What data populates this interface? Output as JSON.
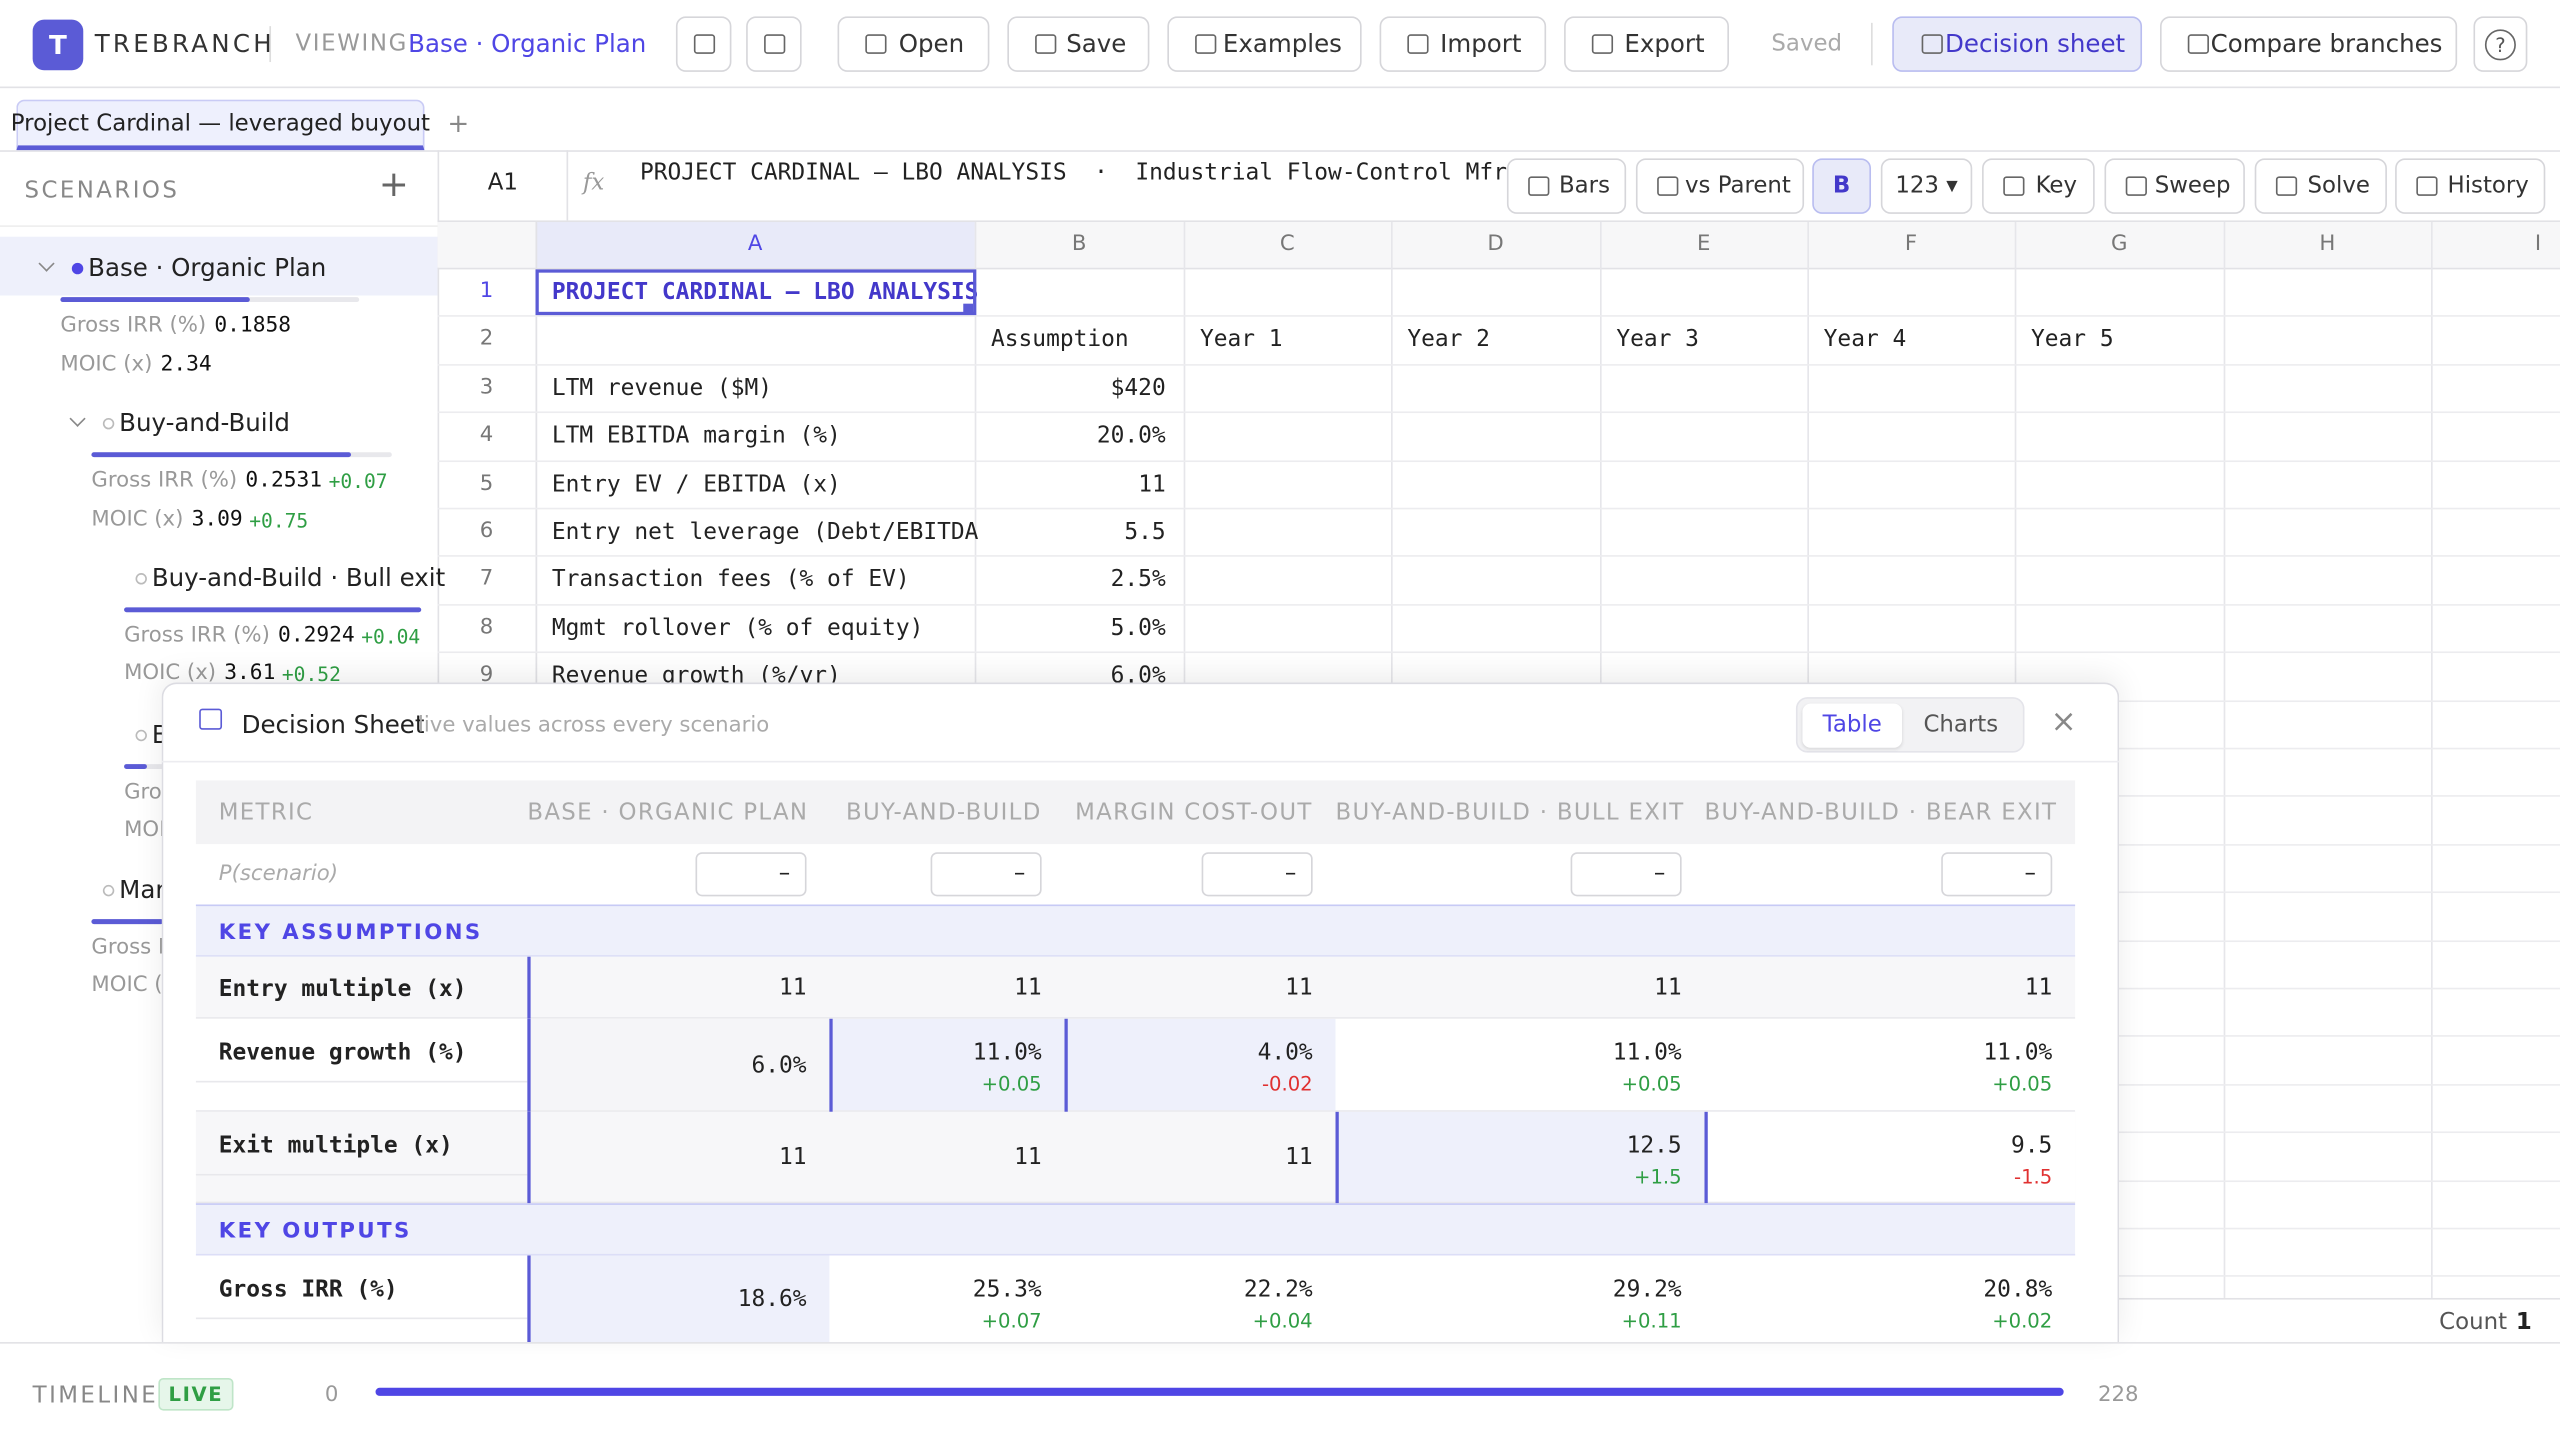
{
  "header": {
    "logo": "T",
    "brand": "TREBRANCH",
    "viewing_label": "VIEWING",
    "viewing_value": "Base · Organic Plan",
    "buttons": [
      "Open",
      "Save",
      "Examples",
      "Import",
      "Export"
    ],
    "status": "Saved",
    "decision_sheet": "Decision sheet",
    "compare": "Compare branches",
    "help": "?"
  },
  "tabs": {
    "items": [
      "Project Cardinal — leveraged buyout"
    ],
    "add": "+"
  },
  "sidebar": {
    "title": "SCENARIOS",
    "add": "+",
    "scenarios": [
      {
        "name": "Base · Organic Plan",
        "metrics": [
          {
            "label": "Gross IRR (%)",
            "value": "0.1858"
          },
          {
            "label": "MOIC (x)",
            "value": "2.34"
          }
        ]
      },
      {
        "name": "Buy-and-Build",
        "metrics": [
          {
            "label": "Gross IRR (%)",
            "value": "0.2531",
            "delta": "+0.07"
          },
          {
            "label": "MOIC (x)",
            "value": "3.09",
            "delta": "+0.75"
          }
        ]
      },
      {
        "name": "Buy-and-Build · Bull exit",
        "metrics": [
          {
            "label": "Gross IRR (%)",
            "value": "0.2924",
            "delta": "+0.04"
          },
          {
            "label": "MOIC (x)",
            "value": "3.61",
            "delta": "+0.52"
          }
        ]
      },
      {
        "name": "Buy-and-Build · Bear exit",
        "metrics": [
          {
            "label": "Gross IRR (%)"
          },
          {
            "label": "MOIC (x)"
          }
        ]
      },
      {
        "name": "Margin cost-out",
        "metrics": [
          {
            "label": "Gross IRR (%)"
          },
          {
            "label": "MOIC (x)"
          }
        ]
      }
    ]
  },
  "formula": {
    "cell": "A1",
    "fx": "fx",
    "text": "PROJECT CARDINAL — LBO ANALYSIS  ·  Industrial Flow-Control Mfr.",
    "tools": [
      "Bars",
      "vs Parent",
      "B",
      "123 ▾",
      "Key",
      "Sweep",
      "Solve",
      "History"
    ]
  },
  "grid": {
    "columns": [
      "A",
      "B",
      "C",
      "D",
      "E",
      "F",
      "G",
      "H",
      "I"
    ],
    "rows": [
      {
        "num": 1,
        "A": "PROJECT CARDINAL — LBO ANALYSIS"
      },
      {
        "num": 2,
        "B": "Assumption",
        "C": "Year 1",
        "D": "Year 2",
        "E": "Year 3",
        "F": "Year 4",
        "G": "Year 5"
      },
      {
        "num": 3,
        "A": "LTM revenue ($M)",
        "B": "$420"
      },
      {
        "num": 4,
        "A": "LTM EBITDA margin (%)",
        "B": "20.0%"
      },
      {
        "num": 5,
        "A": "Entry EV / EBITDA (x)",
        "B": "11"
      },
      {
        "num": 6,
        "A": "Entry net leverage (Debt/EBITDA",
        "B": "5.5"
      },
      {
        "num": 7,
        "A": "Transaction fees (% of EV)",
        "B": "2.5%"
      },
      {
        "num": 8,
        "A": "Mgmt rollover (% of equity)",
        "B": "5.0%"
      },
      {
        "num": 9,
        "A": "Revenue growth (%/yr)",
        "B": "6.0%"
      }
    ]
  },
  "panel": {
    "title": "Decision Sheet",
    "subtitle": "live values across every scenario",
    "views": [
      "Table",
      "Charts"
    ],
    "close": "×",
    "columns": [
      "METRIC",
      "BASE · ORGANIC PLAN",
      "BUY-AND-BUILD",
      "MARGIN COST-OUT",
      "BUY-AND-BUILD · BULL EXIT",
      "BUY-AND-BUILD · BEAR EXIT"
    ],
    "probability": {
      "label": "P(scenario)",
      "inputs": [
        "–",
        "–",
        "–",
        "–",
        "–"
      ]
    },
    "sections": [
      {
        "title": "KEY ASSUMPTIONS",
        "rows": [
          {
            "metric": "Entry multiple (x)",
            "cells": [
              {
                "value": "11"
              },
              {
                "value": "11"
              },
              {
                "value": "11"
              },
              {
                "value": "11"
              },
              {
                "value": "11"
              }
            ]
          },
          {
            "metric": "Revenue growth (%)",
            "cells": [
              {
                "value": "6.0%"
              },
              {
                "value": "11.0%",
                "delta": "+0.05"
              },
              {
                "value": "4.0%",
                "delta": "-0.02"
              },
              {
                "value": "11.0%",
                "delta": "+0.05"
              },
              {
                "value": "11.0%",
                "delta": "+0.05"
              }
            ]
          },
          {
            "metric": "Exit multiple (x)",
            "cells": [
              {
                "value": "11"
              },
              {
                "value": "11"
              },
              {
                "value": "11"
              },
              {
                "value": "12.5",
                "delta": "+1.5"
              },
              {
                "value": "9.5",
                "delta": "-1.5"
              }
            ]
          }
        ]
      },
      {
        "title": "KEY OUTPUTS",
        "rows": [
          {
            "metric": "Gross IRR (%)",
            "cells": [
              {
                "value": "18.6%"
              },
              {
                "value": "25.3%",
                "delta": "+0.07"
              },
              {
                "value": "22.2%",
                "delta": "+0.04"
              },
              {
                "value": "29.2%",
                "delta": "+0.11"
              },
              {
                "value": "20.8%",
                "delta": "+0.02"
              }
            ]
          }
        ]
      }
    ]
  },
  "status": {
    "count_label": "Count",
    "count": 1
  },
  "timeline": {
    "label": "TIMELINE",
    "badge": "LIVE",
    "start": 0,
    "end": 228
  }
}
